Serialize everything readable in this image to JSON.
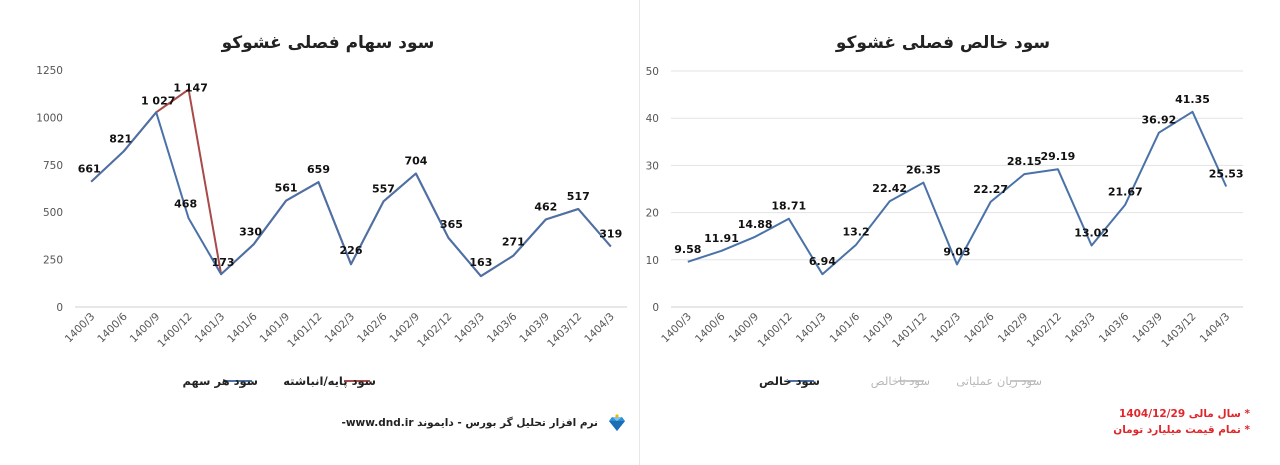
{
  "chart_data": [
    {
      "type": "line",
      "title": "سود سهام فصلی غشوکو",
      "categories": [
        "1400/3",
        "1400/6",
        "1400/9",
        "1400/12",
        "1401/3",
        "1401/6",
        "1401/9",
        "1401/12",
        "1402/3",
        "1402/6",
        "1402/9",
        "1402/12",
        "1403/3",
        "1403/6",
        "1403/9",
        "1403/12",
        "1404/3"
      ],
      "ylim": [
        0,
        1250
      ],
      "yticks": [
        "0",
        "250",
        "500",
        "750",
        "1000",
        "1250"
      ],
      "grid": false,
      "legend_position": "bottom",
      "series": [
        {
          "name": "سود هر سهم",
          "color": "#4a72a8",
          "values": [
            661,
            821,
            1027,
            468,
            173,
            330,
            561,
            659,
            226,
            557,
            704,
            365,
            163,
            271,
            462,
            517,
            319
          ]
        },
        {
          "name": "سود پایه/انباشته",
          "color": "#a84a4a",
          "values": [
            661,
            821,
            1027,
            1147,
            173,
            330,
            561,
            659,
            226,
            557,
            704,
            365,
            163,
            271,
            462,
            517,
            319
          ]
        }
      ],
      "data_labels": [
        "661",
        "821",
        "1 027",
        "468",
        "173",
        "330",
        "561",
        "659",
        "226",
        "557",
        "704",
        "365",
        "163",
        "271",
        "462",
        "517",
        "319"
      ],
      "extra_label": "1 147"
    },
    {
      "type": "line",
      "title": "سود خالص فصلی غشوکو",
      "categories": [
        "1400/3",
        "1400/6",
        "1400/9",
        "1400/12",
        "1401/3",
        "1401/6",
        "1401/9",
        "1401/12",
        "1402/3",
        "1402/6",
        "1402/9",
        "1402/12",
        "1403/3",
        "1403/6",
        "1403/9",
        "1403/12",
        "1404/3"
      ],
      "ylim": [
        0,
        50
      ],
      "yticks": [
        "0",
        "10",
        "20",
        "30",
        "40",
        "50"
      ],
      "grid": true,
      "legend_position": "bottom",
      "series": [
        {
          "name": "سود خالص",
          "color": "#4a72a8",
          "values": [
            9.58,
            11.91,
            14.88,
            18.71,
            6.94,
            13.2,
            22.42,
            26.35,
            9.03,
            22.27,
            28.15,
            29.19,
            13.02,
            21.67,
            36.92,
            41.35,
            25.53
          ]
        }
      ],
      "data_labels": [
        "9.58",
        "11.91",
        "14.88",
        "18.71",
        "6.94",
        "13.2",
        "22.42",
        "26.35",
        "9.03",
        "22.27",
        "28.15",
        "29.19",
        "13.02",
        "21.67",
        "36.92",
        "41.35",
        "25.53"
      ],
      "legend_muted": [
        "سود ناخالص",
        "سود زیان عملیاتی"
      ]
    }
  ],
  "footer": {
    "brand_text": "نرم افزار تحلیل گر بورس - دایموند www.dnd.ir-",
    "note_1": "* سال مالی 1404/12/29",
    "note_2": "* تمام قیمت میلیارد تومان"
  },
  "colors": {
    "series_blue": "#4a72a8",
    "series_red": "#a84a4a",
    "note_red": "#e0262b",
    "legend_muted": "#c8c8c8"
  }
}
